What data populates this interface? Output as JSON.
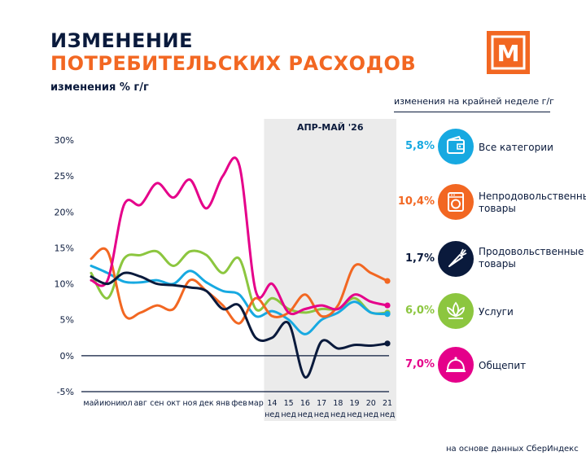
{
  "title_line1": "ИЗМЕНЕНИЕ",
  "title_line2": "ПОТРЕБИТЕЛЬСКИХ РАСХОДОВ",
  "y_axis_caption": "изменения % г/г",
  "logo_letter": "М",
  "legend_header": "изменения на крайней неделе г/г",
  "footer": "на основе данных СберИндекс",
  "colors": {
    "navy": "#0a1a3c",
    "orange": "#f26722",
    "highlight_band": "#ebebeb"
  },
  "chart_data": {
    "type": "line",
    "title": "ИЗМЕНЕНИЕ ПОТРЕБИТЕЛЬСКИХ РАСХОДОВ",
    "ylabel": "изменения % г/г",
    "ylim": [
      -5,
      30
    ],
    "yticks": [
      30,
      25,
      20,
      15,
      10,
      5,
      0,
      -5
    ],
    "ytick_labels": [
      "30%",
      "25%",
      "20%",
      "15%",
      "10%",
      "5%",
      "0%",
      "-5%"
    ],
    "categories": [
      "май",
      "июн",
      "июл",
      "авг",
      "сен",
      "окт",
      "ноя",
      "дек",
      "янв",
      "фев",
      "мар",
      "14",
      "15",
      "16",
      "17",
      "18",
      "19",
      "20",
      "21"
    ],
    "category_sublabels": [
      "",
      "",
      "",
      "",
      "",
      "",
      "",
      "",
      "",
      "",
      "",
      "нед",
      "нед",
      "нед",
      "нед",
      "нед",
      "нед",
      "нед",
      "нед"
    ],
    "highlight": {
      "label": "АПР-МАЙ '26",
      "from_index": 11,
      "to_index": 18
    },
    "grid": false,
    "legend": "right",
    "series": [
      {
        "name": "Все категории",
        "color": "#17a9e1",
        "icon": "wallet-icon",
        "last_label": "5,8%",
        "values": [
          12.5,
          11.5,
          10.3,
          10.2,
          10.5,
          10.0,
          11.8,
          10.2,
          9.0,
          8.5,
          5.5,
          6.2,
          5.0,
          3.0,
          5.0,
          6.0,
          7.5,
          6.0,
          5.8
        ]
      },
      {
        "name": "Непродовольственные товары",
        "color": "#f26722",
        "icon": "washing-machine-icon",
        "last_label": "10,4%",
        "values": [
          13.5,
          14.5,
          5.8,
          6.0,
          7.0,
          6.5,
          10.5,
          9.0,
          7.0,
          4.5,
          8.0,
          5.5,
          6.0,
          8.5,
          5.5,
          7.0,
          12.5,
          11.5,
          10.4
        ]
      },
      {
        "name": "Продовольственные товары",
        "color": "#0a1a3c",
        "icon": "carrot-icon",
        "last_label": "1,7%",
        "values": [
          11.0,
          10.0,
          11.5,
          11.0,
          10.0,
          9.8,
          9.5,
          9.0,
          6.5,
          7.0,
          2.5,
          2.5,
          4.5,
          -3.0,
          2.0,
          1.0,
          1.5,
          1.4,
          1.7
        ]
      },
      {
        "name": "Услуги",
        "color": "#8cc63f",
        "icon": "lotus-icon",
        "last_label": "6,0%",
        "values": [
          11.5,
          8.0,
          13.5,
          14.0,
          14.5,
          12.5,
          14.5,
          14.0,
          11.5,
          13.5,
          6.5,
          8.0,
          6.5,
          6.0,
          6.5,
          6.5,
          8.0,
          6.0,
          6.0
        ]
      },
      {
        "name": "Общепит",
        "color": "#e5008a",
        "icon": "cloche-icon",
        "last_label": "7,0%",
        "values": [
          10.5,
          10.5,
          21.0,
          21.0,
          24.0,
          22.0,
          24.5,
          20.5,
          25.0,
          26.5,
          9.0,
          10.0,
          6.0,
          6.5,
          7.0,
          6.5,
          8.5,
          7.5,
          7.0
        ]
      }
    ]
  }
}
